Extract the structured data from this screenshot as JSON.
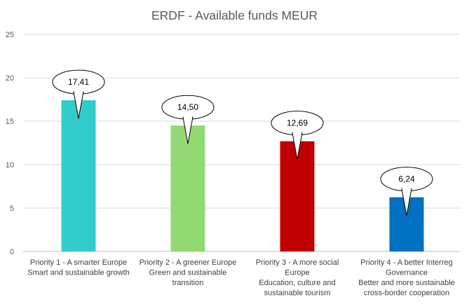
{
  "chart_data": {
    "type": "bar",
    "title": "ERDF - Available funds MEUR",
    "xlabel": "",
    "ylabel": "",
    "ylim": [
      0,
      25
    ],
    "yticks": [
      "0",
      "5",
      "10",
      "15",
      "20",
      "25"
    ],
    "grid": true,
    "categories": [
      [
        "Priority 1 - A smarter Europe",
        "Smart and sustainable growth"
      ],
      [
        "Priority 2 - A greener Europe",
        "Green and sustainable",
        "transition"
      ],
      [
        "Priority 3 - A more social",
        "Europe",
        "Education, culture and",
        "sustainable tourism"
      ],
      [
        "Priority 4 - A better Interreg",
        "Governance",
        "Better and more sustainable",
        "cross-border cooperation"
      ]
    ],
    "values": [
      17.41,
      14.5,
      12.69,
      6.24
    ],
    "data_labels": [
      "17,41",
      "14,50",
      "12,69",
      "6,24"
    ],
    "colors": [
      "#33CCCC",
      "#92D973",
      "#C00000",
      "#0070C0"
    ]
  }
}
